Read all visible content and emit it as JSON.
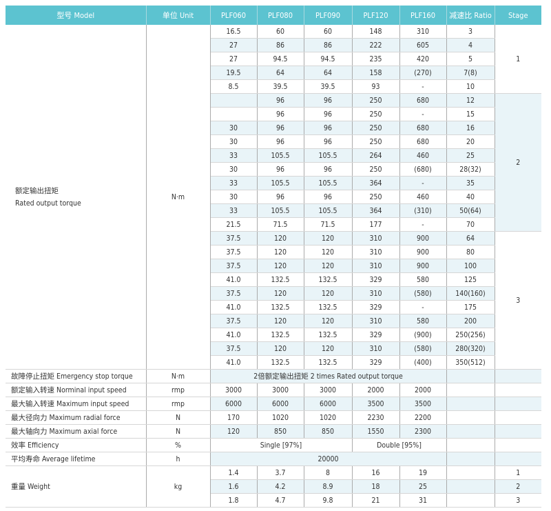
{
  "header": {
    "model": "型号 Model",
    "unit": "单位 Unit",
    "models": [
      "PLF060",
      "PLF080",
      "PLF090",
      "PLF120",
      "PLF160"
    ],
    "ratio": "减速比 Ratio",
    "stage": "Stage"
  },
  "torque": {
    "label_cn": "额定输出扭矩",
    "label_en": "Rated output torque",
    "unit": "N·m",
    "rows": [
      [
        "16.5",
        "60",
        "60",
        "148",
        "310",
        "3"
      ],
      [
        "27",
        "86",
        "86",
        "222",
        "605",
        "4"
      ],
      [
        "27",
        "94.5",
        "94.5",
        "235",
        "420",
        "5"
      ],
      [
        "19.5",
        "64",
        "64",
        "158",
        "(270)",
        "7(8)"
      ],
      [
        "8.5",
        "39.5",
        "39.5",
        "93",
        "-",
        "10"
      ],
      [
        "",
        "96",
        "96",
        "250",
        "680",
        "12"
      ],
      [
        "",
        "96",
        "96",
        "250",
        "-",
        "15"
      ],
      [
        "30",
        "96",
        "96",
        "250",
        "680",
        "16"
      ],
      [
        "30",
        "96",
        "96",
        "250",
        "680",
        "20"
      ],
      [
        "33",
        "105.5",
        "105.5",
        "264",
        "460",
        "25"
      ],
      [
        "30",
        "96",
        "96",
        "250",
        "(680)",
        "28(32)"
      ],
      [
        "33",
        "105.5",
        "105.5",
        "364",
        "-",
        "35"
      ],
      [
        "30",
        "96",
        "96",
        "250",
        "460",
        "40"
      ],
      [
        "33",
        "105.5",
        "105.5",
        "364",
        "(310)",
        "50(64)"
      ],
      [
        "21.5",
        "71.5",
        "71.5",
        "177",
        "-",
        "70"
      ],
      [
        "37.5",
        "120",
        "120",
        "310",
        "900",
        "64"
      ],
      [
        "37.5",
        "120",
        "120",
        "310",
        "900",
        "80"
      ],
      [
        "37.5",
        "120",
        "120",
        "310",
        "900",
        "100"
      ],
      [
        "41.0",
        "132.5",
        "132.5",
        "329",
        "580",
        "125"
      ],
      [
        "37.5",
        "120",
        "120",
        "310",
        "(580)",
        "140(160)"
      ],
      [
        "41.0",
        "132.5",
        "132.5",
        "329",
        "-",
        "175"
      ],
      [
        "37.5",
        "120",
        "120",
        "310",
        "580",
        "200"
      ],
      [
        "41.0",
        "132.5",
        "132.5",
        "329",
        "(900)",
        "250(256)"
      ],
      [
        "37.5",
        "120",
        "120",
        "310",
        "(580)",
        "280(320)"
      ],
      [
        "41.0",
        "132.5",
        "132.5",
        "329",
        "(400)",
        "350(512)"
      ]
    ],
    "stages": [
      {
        "label": "1",
        "count": 5
      },
      {
        "label": "2",
        "count": 10
      },
      {
        "label": "3",
        "count": 10
      }
    ]
  },
  "emergency": {
    "label": "故障停止扭矩 Emergency stop torque",
    "unit": "N·m",
    "value": "2倍额定输出扭矩  2 times Rated output torque"
  },
  "specs": [
    {
      "label": "额定输入转速 Norminal input speed",
      "unit": "rmp",
      "values": [
        "3000",
        "3000",
        "3000",
        "2000",
        "2000"
      ]
    },
    {
      "label": "最大输入转速 Maximum input speed",
      "unit": "rmp",
      "values": [
        "6000",
        "6000",
        "6000",
        "3500",
        "3500"
      ]
    },
    {
      "label": "最大径向力 Maximum radial force",
      "unit": "N",
      "values": [
        "170",
        "1020",
        "1020",
        "2230",
        "2200"
      ]
    },
    {
      "label": "最大轴向力 Maximum axial force",
      "unit": "N",
      "values": [
        "120",
        "850",
        "850",
        "1550",
        "2300"
      ]
    }
  ],
  "efficiency": {
    "label": "效率 Efficiency",
    "unit": "%",
    "single": "Single [97%]",
    "double": "Double [95%]"
  },
  "lifetime": {
    "label": "平均寿命 Average lifetime",
    "unit": "h",
    "value": "20000"
  },
  "weight": {
    "label": "重量 Weight",
    "unit": "kg",
    "rows": [
      {
        "values": [
          "1.4",
          "3.7",
          "8",
          "16",
          "19"
        ],
        "stage": "1"
      },
      {
        "values": [
          "1.6",
          "4.2",
          "8.9",
          "18",
          "25"
        ],
        "stage": "2"
      },
      {
        "values": [
          "1.8",
          "4.7",
          "9.8",
          "21",
          "31"
        ],
        "stage": "3"
      }
    ]
  }
}
